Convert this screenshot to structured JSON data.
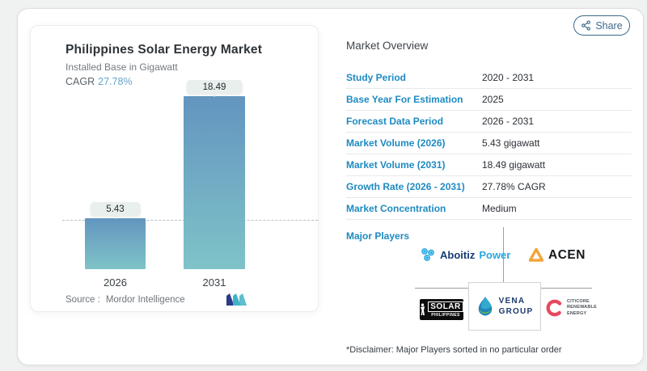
{
  "colors": {
    "accent_blue": "#1e8ac2",
    "cagr_blue": "#68a4cd",
    "bar_top": "#6395bf",
    "bar_bottom": "#7fc3c8",
    "share_blue": "#3d6b8c",
    "pill_bg": "#e9efed"
  },
  "share_button": {
    "label": "Share"
  },
  "chart_card": {
    "title": "Philippines Solar Energy Market",
    "subtitle": "Installed Base in Gigawatt",
    "cagr_label": "CAGR",
    "cagr_value": "27.78%",
    "source_label": "Source :",
    "source_name": "Mordor Intelligence"
  },
  "chart_data": {
    "type": "bar",
    "title": "Philippines Solar Energy Market",
    "ylabel": "Installed Base in Gigawatt",
    "categories": [
      "2026",
      "2031"
    ],
    "values": [
      5.43,
      18.49
    ],
    "unit": "gigawatt",
    "cagr_percent": 27.78,
    "reference_line": 5.43,
    "ylim": [
      0,
      20
    ],
    "grid": false,
    "legend": "none",
    "bar_gradient": [
      "#6395bf",
      "#7fc3c8"
    ]
  },
  "overview": {
    "title": "Market Overview",
    "rows": [
      {
        "label": "Study Period",
        "value": "2020 - 2031"
      },
      {
        "label": "Base Year For Estimation",
        "value": "2025"
      },
      {
        "label": "Forecast Data Period",
        "value": "2026 - 2031"
      },
      {
        "label": "Market Volume (2026)",
        "value": "5.43 gigawatt"
      },
      {
        "label": "Market Volume (2031)",
        "value": "18.49 gigawatt"
      },
      {
        "label": "Growth Rate (2026 - 2031)",
        "value": "27.78% CAGR"
      },
      {
        "label": "Market Concentration",
        "value": "Medium"
      }
    ],
    "major_players": {
      "label": "Major Players",
      "aboitiz": {
        "part1": "Aboitiz",
        "part2": "Power"
      },
      "acen": {
        "name": "ACEN"
      },
      "solar_philippines": {
        "line1": "SOLAR",
        "line2": "PHILIPPINES"
      },
      "vena": {
        "line1": "VENA",
        "line2": "GROUP"
      },
      "citicore": {
        "line1": "CITICORE",
        "line2": "RENEWABLE",
        "line3": "ENERGY"
      }
    },
    "disclaimer": "*Disclaimer: Major Players sorted in no particular order"
  }
}
